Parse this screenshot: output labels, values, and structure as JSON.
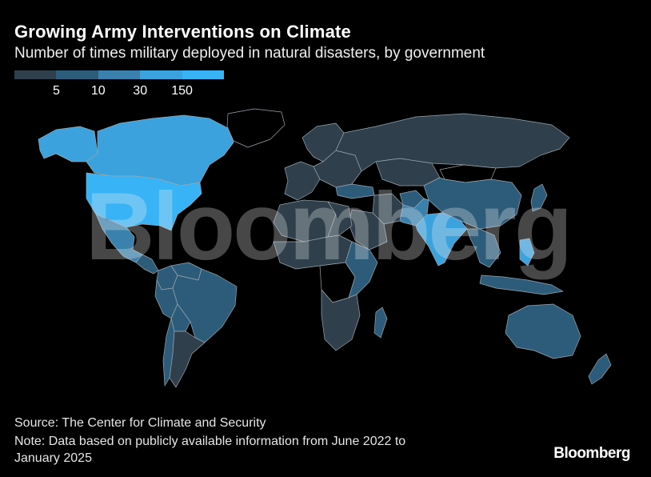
{
  "header": {
    "title": "Growing Army Interventions on Climate",
    "subtitle": "Number of times military deployed in natural disasters, by government"
  },
  "legend": {
    "colors": [
      "#2f3f4b",
      "#2d5c7a",
      "#3a81ad",
      "#3ba2dd",
      "#38b4f6"
    ],
    "ticks": [
      "5",
      "10",
      "30",
      "150"
    ]
  },
  "map": {
    "no_data_color": "#000000",
    "countries": [
      {
        "name": "Canada",
        "bin": 3
      },
      {
        "name": "Alaska",
        "bin": 3
      },
      {
        "name": "Greenland",
        "bin": -1
      },
      {
        "name": "United States",
        "bin": 4
      },
      {
        "name": "Mexico",
        "bin": 2
      },
      {
        "name": "Central America",
        "bin": 1
      },
      {
        "name": "Colombia",
        "bin": 1
      },
      {
        "name": "Venezuela",
        "bin": 1
      },
      {
        "name": "Peru",
        "bin": 1
      },
      {
        "name": "Brazil",
        "bin": 1
      },
      {
        "name": "Bolivia",
        "bin": 1
      },
      {
        "name": "Argentina",
        "bin": 0
      },
      {
        "name": "Chile",
        "bin": 1
      },
      {
        "name": "Scandinavia",
        "bin": 0
      },
      {
        "name": "Western Europe",
        "bin": 0
      },
      {
        "name": "Eastern Europe",
        "bin": 0
      },
      {
        "name": "Russia",
        "bin": 0
      },
      {
        "name": "Kazakhstan",
        "bin": 0
      },
      {
        "name": "Mongolia",
        "bin": -1
      },
      {
        "name": "China",
        "bin": 1
      },
      {
        "name": "Turkey",
        "bin": 1
      },
      {
        "name": "Iran",
        "bin": 0
      },
      {
        "name": "Saudi Arabia",
        "bin": 0
      },
      {
        "name": "Afghanistan",
        "bin": 1
      },
      {
        "name": "Pakistan",
        "bin": 2
      },
      {
        "name": "India",
        "bin": 3
      },
      {
        "name": "Southeast Asia",
        "bin": 1
      },
      {
        "name": "Philippines",
        "bin": 3
      },
      {
        "name": "Japan",
        "bin": 1
      },
      {
        "name": "Indonesia",
        "bin": 1
      },
      {
        "name": "North Africa",
        "bin": 0
      },
      {
        "name": "Egypt",
        "bin": 0
      },
      {
        "name": "Sahel",
        "bin": 0
      },
      {
        "name": "Central Africa",
        "bin": -1
      },
      {
        "name": "East Africa",
        "bin": 1
      },
      {
        "name": "Southern Africa",
        "bin": 0
      },
      {
        "name": "Madagascar",
        "bin": 1
      },
      {
        "name": "Australia",
        "bin": 1
      },
      {
        "name": "New Zealand",
        "bin": 1
      }
    ]
  },
  "watermark": "Bloomberg",
  "footer": {
    "source": "Source: The Center for Climate and Security",
    "note_line1": "Note: Data based on publicly available information from June 2022 to",
    "note_line2": "January 2025",
    "logo": "Bloomberg"
  }
}
